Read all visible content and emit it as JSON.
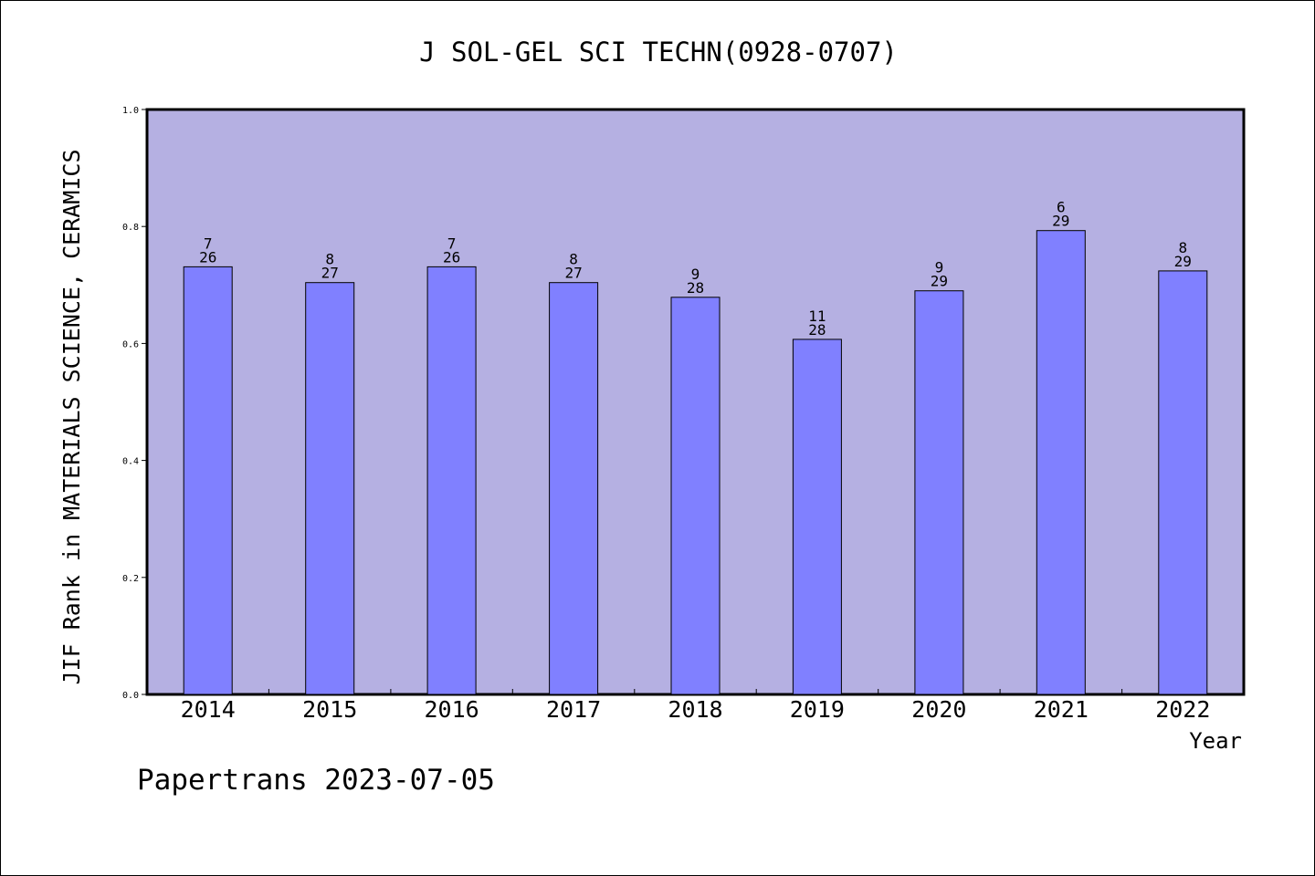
{
  "chart_data": {
    "type": "bar",
    "title": "J SOL-GEL SCI TECHN(0928-0707)",
    "xlabel": "Year",
    "ylabel": "JIF Rank in MATERIALS SCIENCE, CERAMICS",
    "ylim": [
      0,
      1.0
    ],
    "yticks": [
      "0.0",
      "0.2",
      "0.4",
      "0.6",
      "0.8",
      "1.0"
    ],
    "grid": false,
    "legend": "none",
    "categories": [
      "2014",
      "2015",
      "2016",
      "2017",
      "2018",
      "2019",
      "2020",
      "2021",
      "2022"
    ],
    "values": [
      0.731,
      0.704,
      0.731,
      0.704,
      0.679,
      0.607,
      0.69,
      0.793,
      0.724
    ],
    "rank_labels": [
      "7",
      "8",
      "7",
      "8",
      "9",
      "11",
      "9",
      "6",
      "8"
    ],
    "total_labels": [
      "26",
      "27",
      "26",
      "27",
      "28",
      "28",
      "29",
      "29",
      "29"
    ],
    "colors": {
      "plot_background": "#b5b0e2",
      "bar": "#8080ff",
      "bar_edge": "#000000"
    }
  },
  "footer": "Papertrans 2023-07-05"
}
